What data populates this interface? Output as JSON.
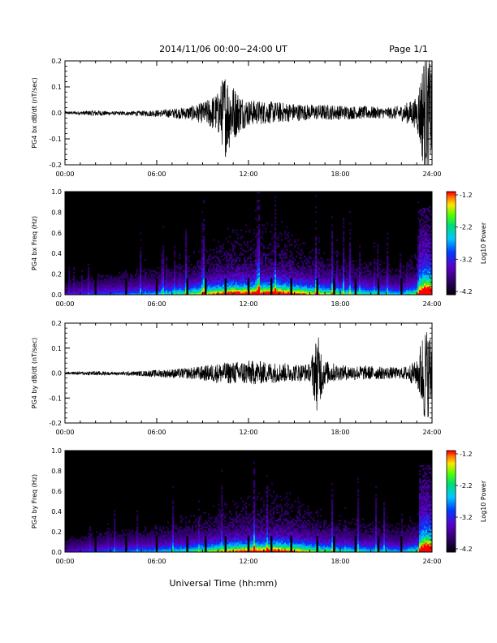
{
  "header": {
    "title": "2014/11/06  00:00−24:00 UT",
    "page": "Page 1/1"
  },
  "xaxis": {
    "label": "Universal Time (hh:mm)",
    "range_hours": [
      0,
      24
    ],
    "ticks": [
      "00:00",
      "06:00",
      "12:00",
      "18:00",
      "24:00"
    ]
  },
  "chart_data": [
    {
      "type": "line",
      "id": "bx_dbdt",
      "ylabel": "PG4 bx dB/dt (nT/sec)",
      "ylim": [
        -0.2,
        0.2
      ],
      "yticks": [
        "-0.2",
        "-0.1",
        "0.0",
        "0.1",
        "0.2"
      ],
      "x_hours": [
        0,
        1,
        2,
        3,
        4,
        5,
        6,
        7,
        8,
        9,
        10,
        10.5,
        11,
        11.5,
        12,
        13,
        14,
        15,
        16,
        17,
        18,
        19,
        20,
        21,
        22,
        23,
        23.5,
        24
      ],
      "amplitude": [
        0.006,
        0.007,
        0.012,
        0.007,
        0.008,
        0.01,
        0.013,
        0.018,
        0.025,
        0.04,
        0.08,
        0.17,
        0.11,
        0.07,
        0.05,
        0.045,
        0.04,
        0.035,
        0.03,
        0.03,
        0.028,
        0.025,
        0.025,
        0.02,
        0.03,
        0.06,
        0.24,
        0.2
      ],
      "grid": false
    },
    {
      "type": "heatmap",
      "id": "bx_spec",
      "ylabel": "PG4 bx Freq (Hz)",
      "ylim": [
        0.0,
        1.0
      ],
      "yticks": [
        "0.0",
        "0.2",
        "0.4",
        "0.6",
        "0.8",
        "1.0"
      ],
      "colorbar": {
        "label": "Log10 Power",
        "range": [
          -4.2,
          -1.2
        ],
        "ticks": [
          "-1.2",
          "-2.2",
          "-3.2",
          "-4.2"
        ]
      },
      "activity_hours": [
        0,
        2,
        4,
        6,
        8,
        10,
        11,
        12,
        14,
        15,
        16,
        18,
        20,
        22,
        23,
        23.6,
        24
      ],
      "activity_level": [
        0.2,
        0.3,
        0.35,
        0.4,
        0.55,
        0.75,
        0.9,
        0.85,
        0.95,
        0.8,
        0.7,
        0.55,
        0.5,
        0.4,
        0.6,
        1.0,
        0.9
      ],
      "gap_hours": [
        2.0,
        4.0,
        6.0,
        8.0,
        9.2,
        10.5,
        12.0,
        13.5,
        14.8,
        16.5,
        17.6,
        19.0,
        20.5,
        22.0
      ]
    },
    {
      "type": "line",
      "id": "by_dbdt",
      "ylabel": "PG4 by dB/dt (nT/sec)",
      "ylim": [
        -0.2,
        0.2
      ],
      "yticks": [
        "-0.2",
        "-0.1",
        "0.0",
        "0.1",
        "0.2"
      ],
      "x_hours": [
        0,
        1,
        2,
        3,
        4,
        5,
        6,
        7,
        8,
        9,
        10,
        11,
        12,
        13,
        14,
        15,
        16,
        16.5,
        17,
        18,
        19,
        20,
        21,
        22,
        23,
        23.5,
        24
      ],
      "amplitude": [
        0.005,
        0.006,
        0.01,
        0.006,
        0.008,
        0.01,
        0.015,
        0.018,
        0.022,
        0.03,
        0.04,
        0.045,
        0.05,
        0.045,
        0.04,
        0.035,
        0.035,
        0.16,
        0.05,
        0.03,
        0.03,
        0.028,
        0.025,
        0.022,
        0.05,
        0.2,
        0.15
      ],
      "grid": false
    },
    {
      "type": "heatmap",
      "id": "by_spec",
      "ylabel": "PG4 by Freq (Hz)",
      "ylim": [
        0.0,
        1.0
      ],
      "yticks": [
        "0.0",
        "0.2",
        "0.4",
        "0.6",
        "0.8",
        "1.0"
      ],
      "colorbar": {
        "label": "Log10 Power",
        "range": [
          -4.2,
          -1.2
        ],
        "ticks": [
          "-1.2",
          "-2.2",
          "-3.2",
          "-4.2"
        ]
      },
      "activity_hours": [
        0,
        2,
        4,
        6,
        8,
        10,
        11,
        12,
        14,
        15,
        16,
        18,
        20,
        22,
        23,
        23.6,
        24
      ],
      "activity_level": [
        0.2,
        0.3,
        0.35,
        0.4,
        0.5,
        0.65,
        0.75,
        0.8,
        0.85,
        0.75,
        0.65,
        0.5,
        0.45,
        0.4,
        0.55,
        1.0,
        0.9
      ],
      "gap_hours": [
        2.0,
        4.0,
        6.0,
        8.0,
        9.2,
        10.5,
        12.0,
        13.5,
        14.8,
        16.5,
        17.6,
        19.0,
        20.5,
        22.0
      ]
    }
  ]
}
